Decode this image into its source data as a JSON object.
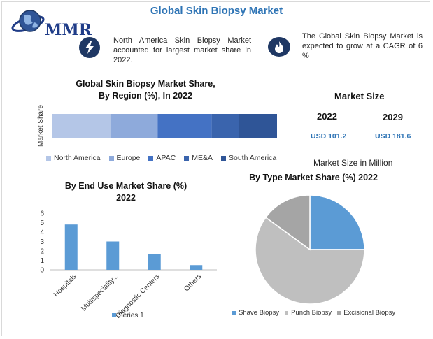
{
  "header": {
    "title": "Global Skin Biopsy Market",
    "logo_text": "MMR"
  },
  "info": [
    {
      "icon": "lightning-icon",
      "text": "North America Skin Biopsy Market accounted for largest market share in 2022."
    },
    {
      "icon": "flame-icon",
      "text": "The Global Skin Biopsy Market is expected to grow at a CAGR of 6 %"
    }
  ],
  "market_size": {
    "heading": "Market Size",
    "years": [
      "2022",
      "2029"
    ],
    "values": [
      "USD 101.2",
      "USD 181.6"
    ],
    "caption": "Market Size in Million"
  },
  "colors": {
    "accent": "#2e74b5",
    "region": [
      "#b4c6e7",
      "#8eaadb",
      "#4472c4",
      "#3a64ad",
      "#2f5597"
    ],
    "bar": "#5b9bd5",
    "pie": [
      "#5b9bd5",
      "#bfbfbf",
      "#a5a5a5"
    ]
  },
  "chart_data": [
    {
      "type": "bar",
      "stacked": true,
      "orientation": "horizontal",
      "title": "Global Skin Biopsy  Market Share,\nBy Region (%), In 2022",
      "title_lines": [
        "Global Skin Biopsy  Market Share,",
        "By Region (%), In 2022"
      ],
      "ylabel": "Market Share",
      "series": [
        {
          "name": "North America",
          "values": [
            26
          ]
        },
        {
          "name": "Europe",
          "values": [
            21
          ]
        },
        {
          "name": "APAC",
          "values": [
            24
          ]
        },
        {
          "name": "ME&A",
          "values": [
            12
          ]
        },
        {
          "name": "South America",
          "values": [
            17
          ]
        }
      ],
      "legend": "bottom"
    },
    {
      "type": "bar",
      "title": "By End Use Market Share (%)\n2022",
      "title_lines": [
        "By End Use Market Share (%)",
        "2022"
      ],
      "categories": [
        "Hospitals",
        "Multispeciality...",
        "Diagnostic Centers",
        "Others"
      ],
      "series": [
        {
          "name": "Series 1",
          "values": [
            4.8,
            3.0,
            1.7,
            0.5
          ]
        }
      ],
      "ylim": [
        0,
        6
      ],
      "yticks": [
        "0",
        "1",
        "2",
        "3",
        "4",
        "5",
        "6"
      ],
      "grid": false,
      "legend": "bottom"
    },
    {
      "type": "pie",
      "title": "By Type Market Share (%) 2022",
      "labels": [
        "Shave Biopsy",
        "Punch Biopsy",
        "Excisional Biopsy"
      ],
      "values": [
        25,
        60,
        15
      ],
      "legend": "bottom"
    }
  ]
}
